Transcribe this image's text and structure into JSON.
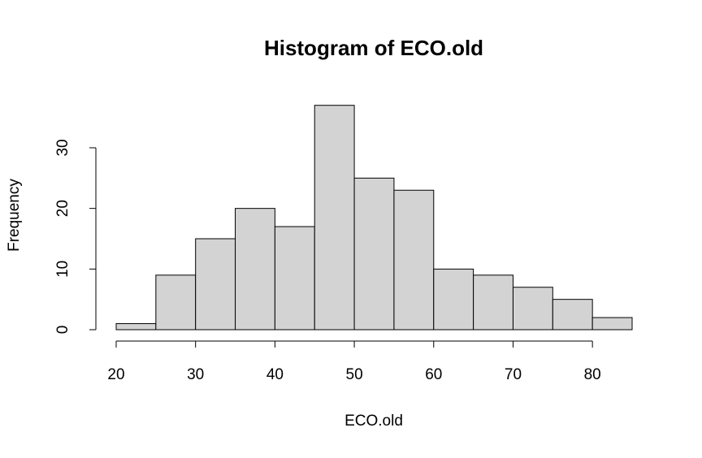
{
  "chart_data": {
    "type": "histogram",
    "title": "Histogram of ECO.old",
    "x_label": "ECO.old",
    "y_label": "Frequency",
    "bins": [
      20,
      25,
      30,
      35,
      40,
      45,
      50,
      55,
      60,
      65,
      70,
      75,
      80,
      85
    ],
    "counts": [
      1,
      9,
      15,
      20,
      17,
      37,
      25,
      23,
      10,
      9,
      7,
      5,
      2
    ],
    "color": "#d3d3d3",
    "xlim": [
      20,
      85
    ],
    "xticks": [
      20,
      30,
      40,
      50,
      60,
      70,
      80
    ],
    "ylim": [
      0,
      37
    ],
    "yticks": [
      0,
      10,
      20,
      30
    ],
    "grid": false
  }
}
